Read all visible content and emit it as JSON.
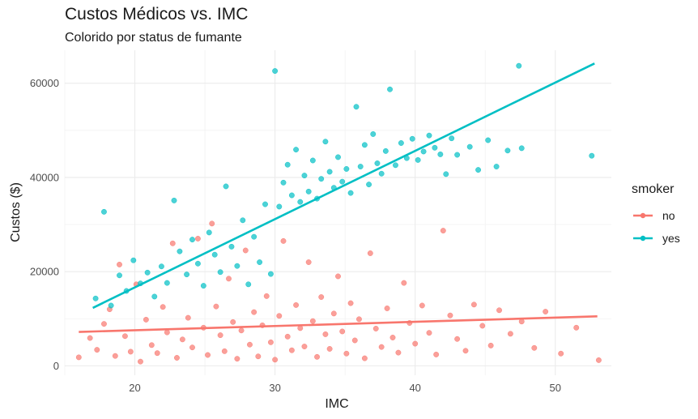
{
  "chart_data": {
    "type": "scatter",
    "title": "Custos Médicos vs. IMC",
    "subtitle": "Colorido por status de fumante",
    "xlabel": "IMC",
    "ylabel": "Custos ($)",
    "xlim": [
      15,
      54
    ],
    "ylim": [
      -2000,
      67000
    ],
    "x_ticks": [
      20,
      30,
      40,
      50
    ],
    "y_ticks": [
      0,
      20000,
      40000,
      60000
    ],
    "y_tick_labels": [
      "0",
      "20000",
      "40000",
      "60000"
    ],
    "grid": true,
    "legend": {
      "title": "smoker",
      "position": "right"
    },
    "series": [
      {
        "name": "no",
        "color": "#F8766D",
        "trend_line": {
          "x": [
            16,
            53
          ],
          "y": [
            7200,
            10500
          ]
        },
        "points": [
          [
            16.0,
            1800
          ],
          [
            16.8,
            5900
          ],
          [
            17.3,
            3400
          ],
          [
            17.8,
            8900
          ],
          [
            18.2,
            12000
          ],
          [
            18.6,
            2100
          ],
          [
            18.9,
            21500
          ],
          [
            19.3,
            6300
          ],
          [
            19.7,
            3000
          ],
          [
            20.1,
            17300
          ],
          [
            20.4,
            900
          ],
          [
            20.8,
            9800
          ],
          [
            21.2,
            4400
          ],
          [
            21.6,
            2700
          ],
          [
            22.0,
            12500
          ],
          [
            22.3,
            7100
          ],
          [
            22.7,
            26000
          ],
          [
            23.0,
            1700
          ],
          [
            23.4,
            5600
          ],
          [
            23.8,
            10200
          ],
          [
            24.1,
            3900
          ],
          [
            24.5,
            27000
          ],
          [
            24.9,
            8100
          ],
          [
            25.2,
            2300
          ],
          [
            25.5,
            30200
          ],
          [
            25.8,
            12600
          ],
          [
            26.1,
            6500
          ],
          [
            26.4,
            3100
          ],
          [
            26.7,
            18500
          ],
          [
            27.0,
            9300
          ],
          [
            27.3,
            1500
          ],
          [
            27.6,
            7500
          ],
          [
            27.9,
            24500
          ],
          [
            28.2,
            4500
          ],
          [
            28.5,
            11400
          ],
          [
            28.8,
            2000
          ],
          [
            29.1,
            8600
          ],
          [
            29.4,
            14800
          ],
          [
            29.7,
            5000
          ],
          [
            30.0,
            1300
          ],
          [
            30.3,
            10600
          ],
          [
            30.6,
            26500
          ],
          [
            30.9,
            6200
          ],
          [
            31.2,
            3300
          ],
          [
            31.5,
            12900
          ],
          [
            31.8,
            8000
          ],
          [
            32.1,
            4100
          ],
          [
            32.4,
            22000
          ],
          [
            32.7,
            9500
          ],
          [
            33.0,
            1900
          ],
          [
            33.3,
            14600
          ],
          [
            33.6,
            6700
          ],
          [
            33.9,
            3600
          ],
          [
            34.2,
            11100
          ],
          [
            34.5,
            19000
          ],
          [
            34.8,
            7300
          ],
          [
            35.1,
            2600
          ],
          [
            35.4,
            13300
          ],
          [
            35.7,
            5400
          ],
          [
            36.0,
            9900
          ],
          [
            36.4,
            1600
          ],
          [
            36.8,
            23900
          ],
          [
            37.2,
            7900
          ],
          [
            37.6,
            4000
          ],
          [
            38.0,
            12200
          ],
          [
            38.4,
            6000
          ],
          [
            38.8,
            2800
          ],
          [
            39.2,
            17600
          ],
          [
            39.6,
            9100
          ],
          [
            40.0,
            4700
          ],
          [
            40.5,
            12800
          ],
          [
            41.0,
            7000
          ],
          [
            41.5,
            2400
          ],
          [
            42.0,
            28700
          ],
          [
            42.5,
            10700
          ],
          [
            43.0,
            5700
          ],
          [
            43.6,
            3200
          ],
          [
            44.2,
            13000
          ],
          [
            44.8,
            8500
          ],
          [
            45.4,
            4300
          ],
          [
            46.0,
            11800
          ],
          [
            46.8,
            6800
          ],
          [
            47.6,
            9400
          ],
          [
            48.5,
            3800
          ],
          [
            49.3,
            11500
          ],
          [
            50.4,
            2600
          ],
          [
            51.5,
            8100
          ],
          [
            53.1,
            1200
          ]
        ]
      },
      {
        "name": "yes",
        "color": "#00BFC4",
        "trend_line": {
          "x": [
            17,
            52.8
          ],
          "y": [
            12300,
            64200
          ]
        },
        "points": [
          [
            17.2,
            14300
          ],
          [
            17.8,
            32700
          ],
          [
            18.3,
            12800
          ],
          [
            18.9,
            19200
          ],
          [
            19.4,
            15900
          ],
          [
            19.9,
            22400
          ],
          [
            20.4,
            17500
          ],
          [
            20.9,
            19800
          ],
          [
            21.4,
            14700
          ],
          [
            21.9,
            21100
          ],
          [
            22.3,
            17600
          ],
          [
            22.8,
            35100
          ],
          [
            23.2,
            24300
          ],
          [
            23.7,
            19400
          ],
          [
            24.1,
            26800
          ],
          [
            24.5,
            21700
          ],
          [
            24.9,
            17000
          ],
          [
            25.3,
            28300
          ],
          [
            25.7,
            23600
          ],
          [
            26.1,
            19900
          ],
          [
            26.5,
            38100
          ],
          [
            26.9,
            25300
          ],
          [
            27.3,
            21200
          ],
          [
            27.7,
            30900
          ],
          [
            28.1,
            17300
          ],
          [
            28.5,
            27400
          ],
          [
            28.9,
            22000
          ],
          [
            29.3,
            34300
          ],
          [
            29.7,
            19500
          ],
          [
            30.0,
            62600
          ],
          [
            30.3,
            33800
          ],
          [
            30.6,
            38900
          ],
          [
            30.9,
            42700
          ],
          [
            31.2,
            36200
          ],
          [
            31.5,
            45900
          ],
          [
            31.8,
            34800
          ],
          [
            32.1,
            40400
          ],
          [
            32.4,
            37000
          ],
          [
            32.7,
            43600
          ],
          [
            33.0,
            35500
          ],
          [
            33.3,
            39700
          ],
          [
            33.6,
            47600
          ],
          [
            33.9,
            41200
          ],
          [
            34.2,
            37800
          ],
          [
            34.5,
            44300
          ],
          [
            34.8,
            39100
          ],
          [
            35.1,
            41800
          ],
          [
            35.4,
            36700
          ],
          [
            35.8,
            55000
          ],
          [
            36.1,
            42300
          ],
          [
            36.4,
            46900
          ],
          [
            36.7,
            38500
          ],
          [
            37.0,
            49200
          ],
          [
            37.3,
            43000
          ],
          [
            37.6,
            40800
          ],
          [
            37.9,
            45600
          ],
          [
            38.2,
            58700
          ],
          [
            38.6,
            42600
          ],
          [
            39.0,
            47300
          ],
          [
            39.4,
            44100
          ],
          [
            39.8,
            48200
          ],
          [
            40.2,
            43700
          ],
          [
            40.6,
            45500
          ],
          [
            41.0,
            48900
          ],
          [
            41.4,
            46300
          ],
          [
            41.8,
            44900
          ],
          [
            42.2,
            40700
          ],
          [
            42.6,
            48300
          ],
          [
            43.0,
            44800
          ],
          [
            43.9,
            46500
          ],
          [
            44.5,
            41600
          ],
          [
            45.2,
            47900
          ],
          [
            45.8,
            42300
          ],
          [
            46.6,
            45700
          ],
          [
            47.4,
            63700
          ],
          [
            47.6,
            46200
          ],
          [
            52.6,
            44600
          ]
        ]
      }
    ]
  }
}
